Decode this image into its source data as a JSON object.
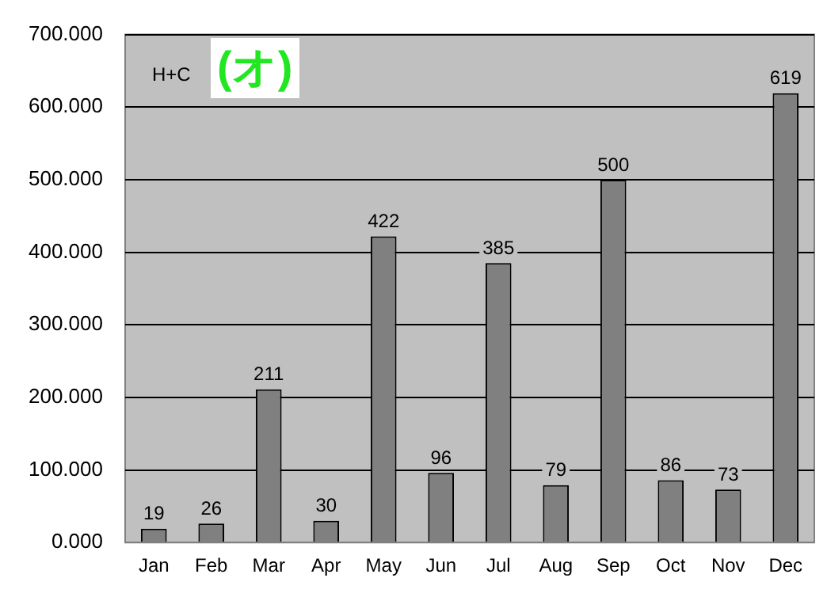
{
  "chart_data": {
    "type": "bar",
    "categories": [
      "Jan",
      "Feb",
      "Mar",
      "Apr",
      "May",
      "Jun",
      "Jul",
      "Aug",
      "Sep",
      "Oct",
      "Nov",
      "Dec"
    ],
    "values": [
      19,
      26,
      211,
      30,
      422,
      96,
      385,
      79,
      500,
      86,
      73,
      619
    ],
    "color": "#808080",
    "ylim": [
      0,
      700
    ],
    "yticks": [
      {
        "value": 0,
        "label": "0.000"
      },
      {
        "value": 100,
        "label": "100.000"
      },
      {
        "value": 200,
        "label": "200.000"
      },
      {
        "value": 300,
        "label": "300.000"
      },
      {
        "value": 400,
        "label": "400.000"
      },
      {
        "value": 500,
        "label": "500.000"
      },
      {
        "value": 600,
        "label": "600.000"
      },
      {
        "value": 700,
        "label": "700.000"
      }
    ],
    "grid": "y",
    "data_labels": true,
    "legend": false,
    "annotations": [
      "H+C",
      "(オ)"
    ]
  }
}
